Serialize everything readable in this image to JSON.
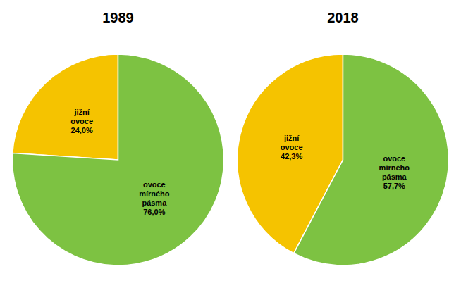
{
  "chart_data": [
    {
      "type": "pie",
      "title": "1989",
      "categories": [
        "jižní\novoce",
        "ovoce\nmírného\npásma"
      ],
      "values": [
        24.0,
        76.0
      ],
      "value_labels": [
        "24,0%",
        "76,0%"
      ],
      "data_labels": true,
      "colors": [
        "#F5C300",
        "#7DC242"
      ]
    },
    {
      "type": "pie",
      "title": "2018",
      "categories": [
        "jižní\novoce",
        "ovoce\nmírného\npásma"
      ],
      "values": [
        42.3,
        57.7
      ],
      "value_labels": [
        "42,3%",
        "57,7%"
      ],
      "data_labels": true,
      "colors": [
        "#F5C300",
        "#7DC242"
      ]
    }
  ]
}
